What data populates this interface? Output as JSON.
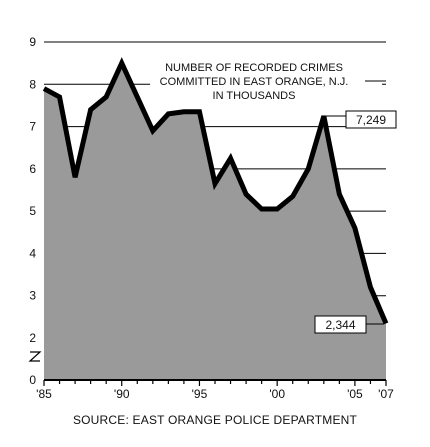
{
  "chart_data": {
    "type": "area",
    "title_lines": [
      "NUMBER OF RECORDED CRIMES",
      "COMMITTED IN EAST ORANGE, N.J.",
      "IN THOUSANDS"
    ],
    "source": "SOURCE: EAST ORANGE POLICE DEPARTMENT",
    "x": [
      1985,
      1986,
      1987,
      1988,
      1989,
      1990,
      1991,
      1992,
      1993,
      1994,
      1995,
      1996,
      1997,
      1998,
      1999,
      2000,
      2001,
      2002,
      2003,
      2004,
      2005,
      2006,
      2007
    ],
    "values": [
      7.9,
      7.7,
      5.8,
      7.4,
      7.7,
      8.5,
      7.7,
      6.9,
      7.3,
      7.35,
      7.35,
      5.65,
      6.25,
      5.4,
      5.05,
      5.05,
      5.35,
      6.0,
      7.249,
      5.4,
      4.6,
      3.2,
      2.344
    ],
    "x_tick_labels": [
      "'85",
      "'90",
      "'95",
      "'00",
      "'05",
      "'07"
    ],
    "x_tick_values": [
      1985,
      1990,
      1995,
      2000,
      2005,
      2007
    ],
    "y_tick_labels": [
      "0",
      "2",
      "3",
      "4",
      "5",
      "6",
      "7",
      "8",
      "9"
    ],
    "y_tick_values": [
      0,
      2,
      3,
      4,
      5,
      6,
      7,
      8,
      9
    ],
    "ylim": [
      0,
      9
    ],
    "y_axis_break": true,
    "grid": true,
    "callouts": [
      {
        "label": "7,249",
        "x": 2003
      },
      {
        "label": "2,344",
        "x": 2007
      }
    ],
    "colors": {
      "fill": "#9a9a9a",
      "line": "#000000",
      "grid": "#000000"
    }
  }
}
